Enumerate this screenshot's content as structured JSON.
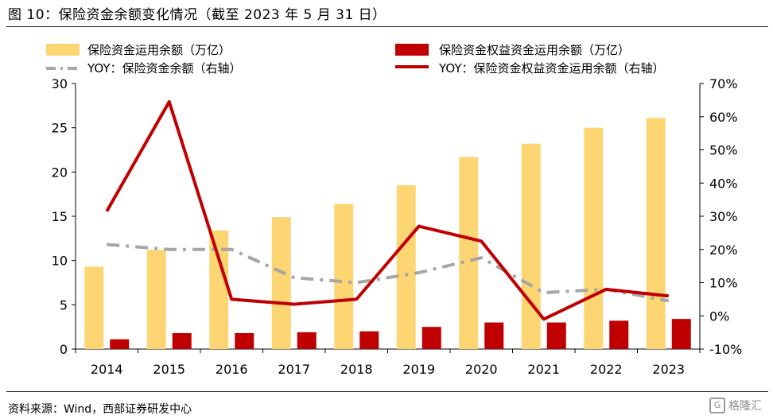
{
  "header": {
    "title": "图 10：保险资金余额变化情况（截至 2023 年 5 月 31 日）"
  },
  "footer": {
    "source": "资料来源：Wind，西部证券研发中心",
    "brand": "格隆汇",
    "brand_mark": "G"
  },
  "legend": {
    "s1": "保险资金运用余额（万亿）",
    "s2": "保险资金权益资金运用余额（万亿）",
    "s3": "YOY：保险资金余额（右轴）",
    "s4": "YOY：保险资金权益资金运用余额（右轴）"
  },
  "colors": {
    "bar1": "#FDD572",
    "bar2": "#C00000",
    "line1": "#A6A6A6",
    "line2": "#C00000"
  },
  "chart_data": {
    "type": "bar",
    "categories": [
      "2014",
      "2015",
      "2016",
      "2017",
      "2018",
      "2019",
      "2020",
      "2021",
      "2022",
      "2023"
    ],
    "y_left": {
      "ylim": [
        0,
        30
      ],
      "ticks": [
        0,
        5,
        10,
        15,
        20,
        25,
        30
      ]
    },
    "y_right": {
      "ylim": [
        -10,
        70
      ],
      "ticks": [
        -10,
        0,
        10,
        20,
        30,
        40,
        50,
        60,
        70
      ],
      "tick_labels": [
        "-10%",
        "0%",
        "10%",
        "20%",
        "30%",
        "40%",
        "50%",
        "60%",
        "70%"
      ]
    },
    "series": [
      {
        "name": "保险资金运用余额（万亿）",
        "type": "bar",
        "axis": "left",
        "values": [
          9.3,
          11.2,
          13.4,
          14.9,
          16.4,
          18.5,
          21.7,
          23.2,
          25.0,
          26.1
        ]
      },
      {
        "name": "保险资金权益资金运用余额（万亿）",
        "type": "bar",
        "axis": "left",
        "values": [
          1.1,
          1.8,
          1.8,
          1.9,
          2.0,
          2.5,
          3.0,
          3.0,
          3.2,
          3.4
        ]
      },
      {
        "name": "YOY：保险资金余额（右轴）",
        "type": "line",
        "style": "dash-dot",
        "axis": "right",
        "values": [
          21.5,
          20.0,
          20.0,
          11.5,
          10.0,
          13.0,
          17.5,
          7.0,
          8.0,
          4.5
        ]
      },
      {
        "name": "YOY：保险资金权益资金运用余额（右轴）",
        "type": "line",
        "style": "solid",
        "axis": "right",
        "values": [
          31.5,
          64.5,
          5.0,
          3.5,
          5.0,
          27.0,
          22.5,
          -1.0,
          8.0,
          6.0
        ]
      }
    ],
    "legend_position": "top",
    "grid": false
  }
}
